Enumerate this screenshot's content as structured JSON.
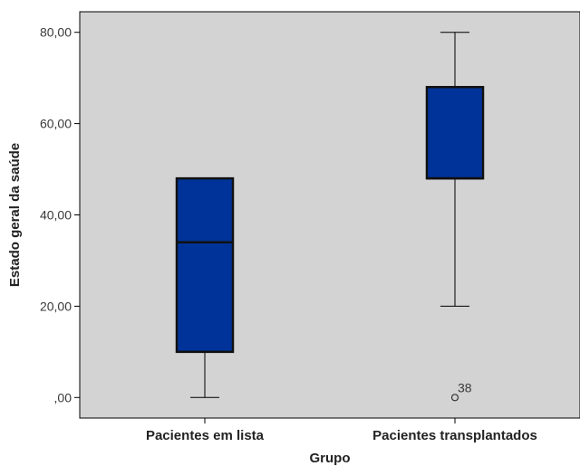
{
  "chart_data": {
    "type": "boxplot",
    "xlabel": "Grupo",
    "ylabel": "Estado geral da saúde",
    "ylim": [
      -4.5,
      84.5
    ],
    "yticks": [
      0,
      20,
      40,
      60,
      80
    ],
    "ytick_labels": [
      ",00",
      "20,00",
      "40,00",
      "60,00",
      "80,00"
    ],
    "categories": [
      "Pacientes em lista",
      "Pacientes transplantados"
    ],
    "boxes": [
      {
        "category": "Pacientes em lista",
        "whisker_low": 0,
        "q1": 10,
        "median": 34,
        "q3": 48,
        "whisker_high": 48,
        "outliers": []
      },
      {
        "category": "Pacientes transplantados",
        "whisker_low": 20,
        "q1": 48,
        "median": 48,
        "q3": 68,
        "whisker_high": 80,
        "outliers": [
          {
            "value": 0,
            "label": "38"
          }
        ]
      }
    ],
    "box_color": "#003399",
    "plot_background": "#d3d3d3",
    "grid": false
  }
}
